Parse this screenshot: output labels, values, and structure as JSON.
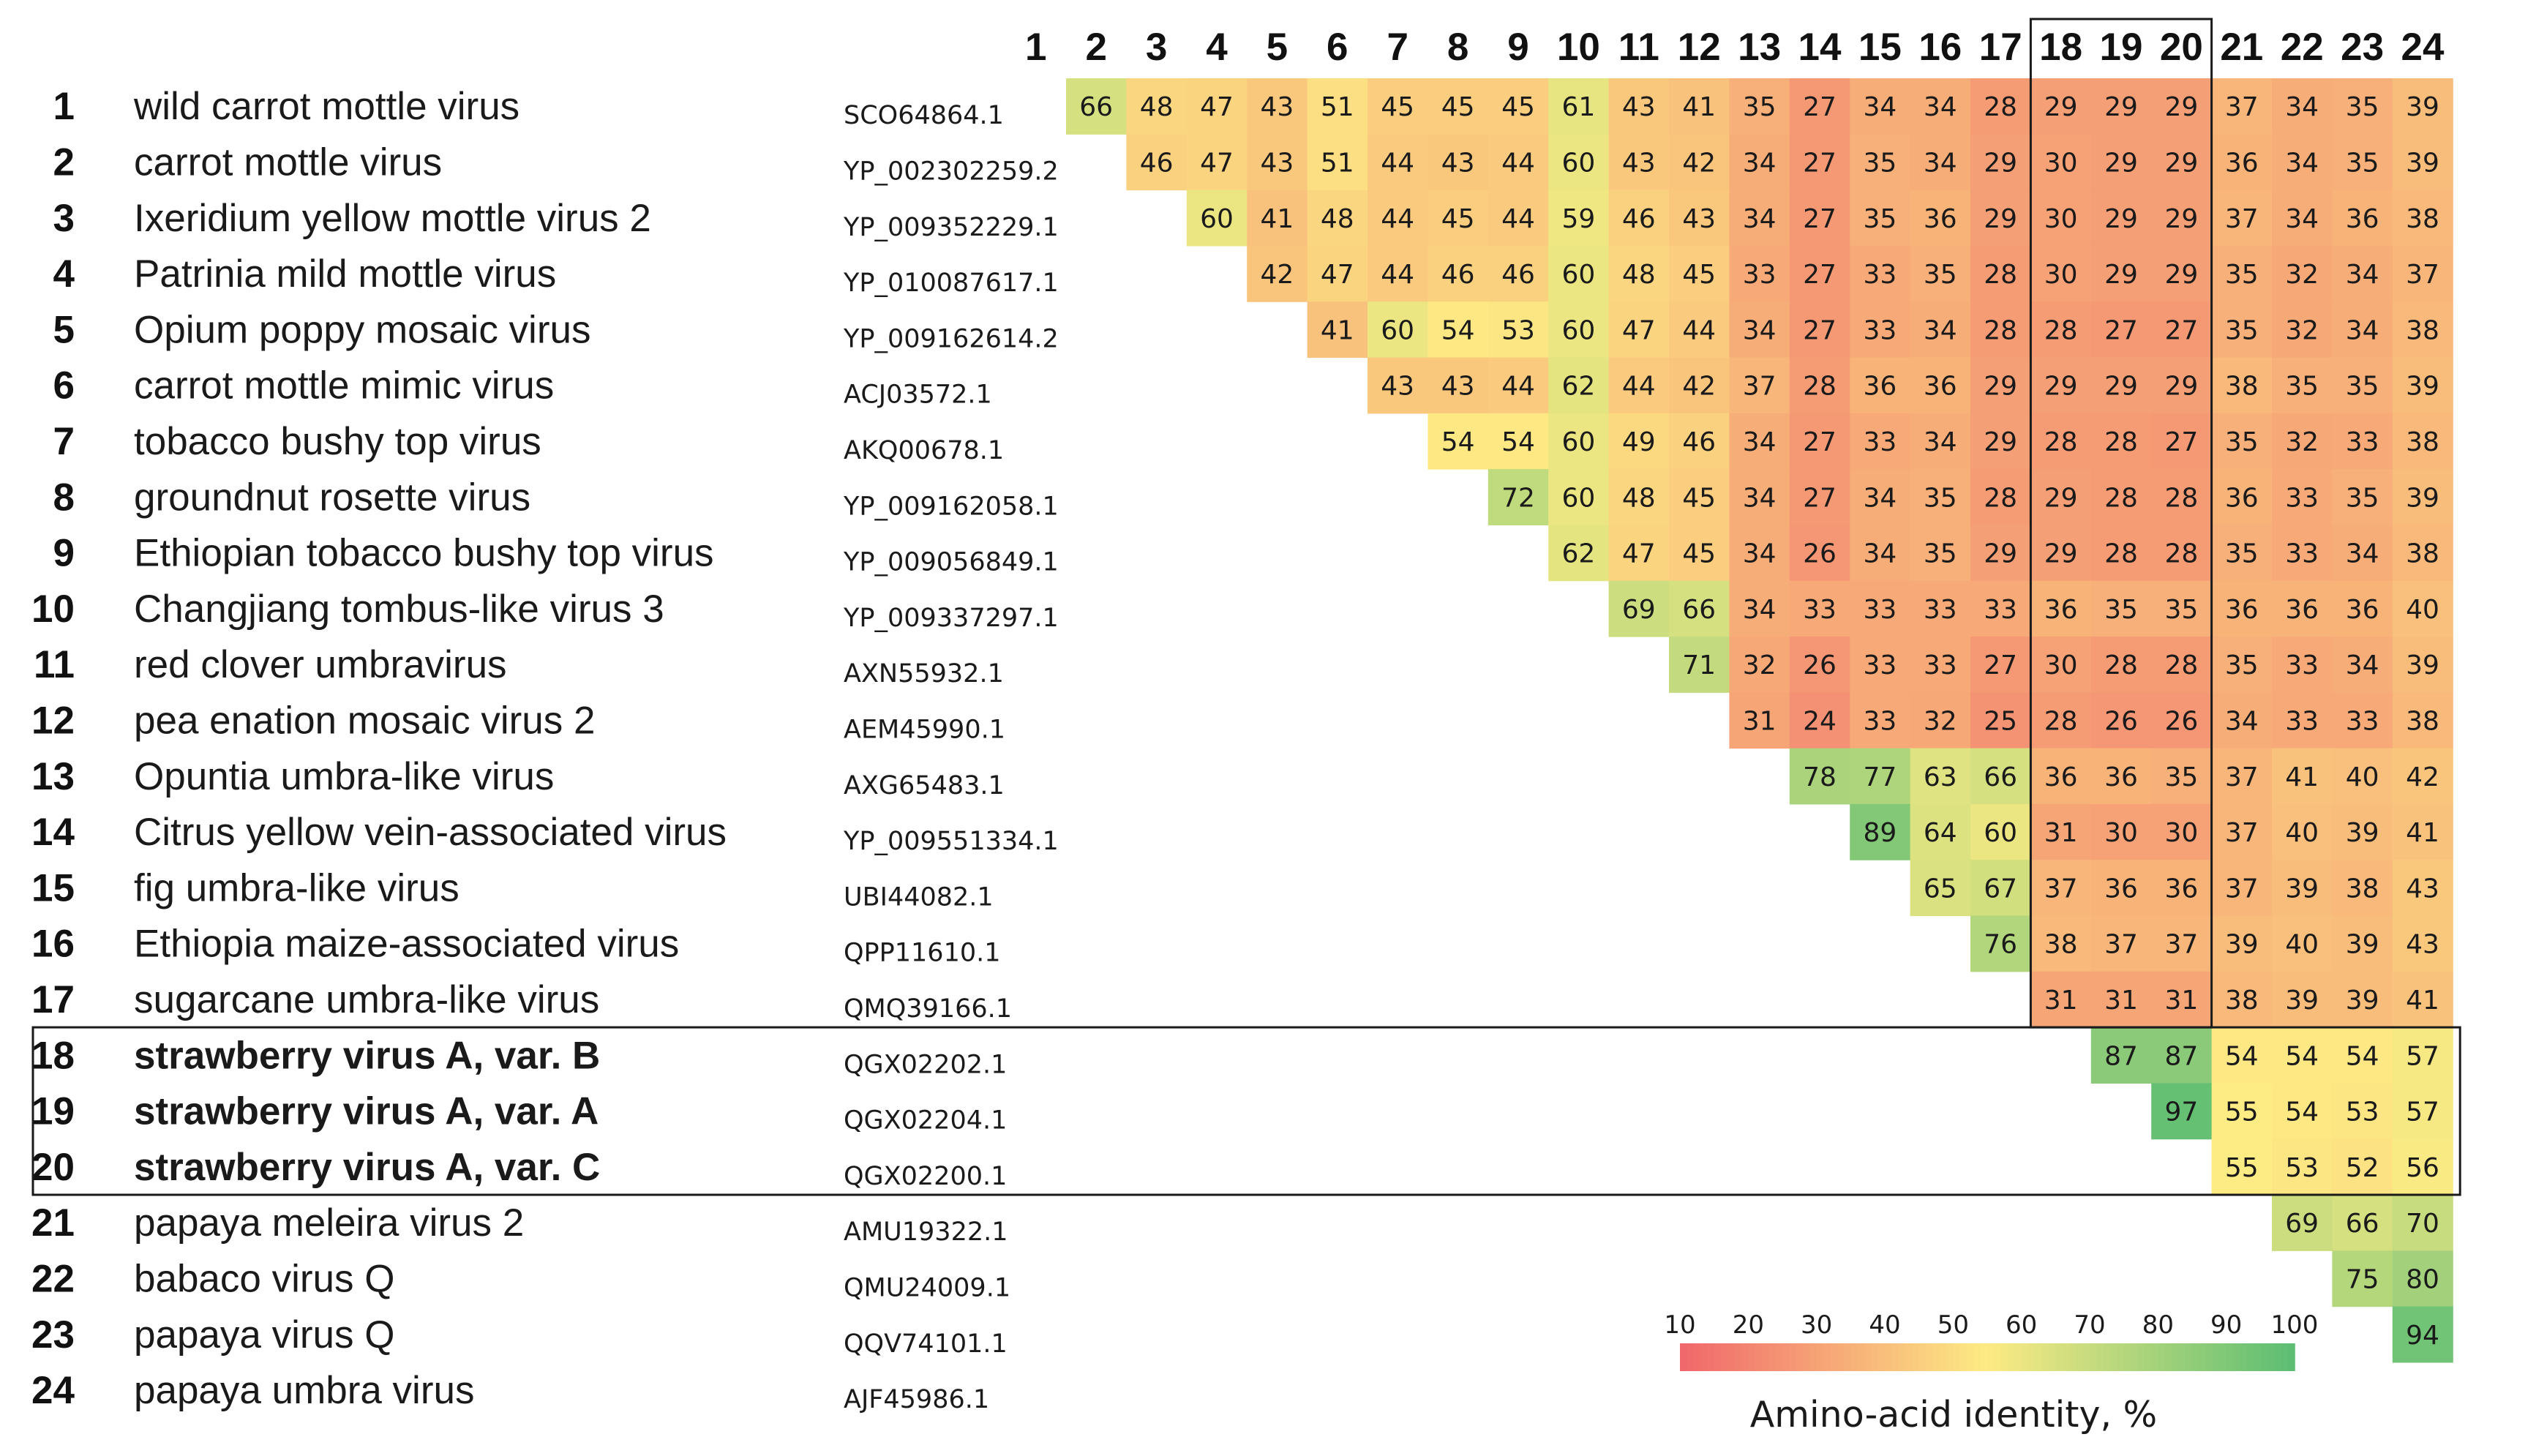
{
  "chart_data": {
    "type": "heatmap",
    "title": "",
    "n": 24,
    "column_labels": [
      "1",
      "2",
      "3",
      "4",
      "5",
      "6",
      "7",
      "8",
      "9",
      "10",
      "11",
      "12",
      "13",
      "14",
      "15",
      "16",
      "17",
      "18",
      "19",
      "20",
      "21",
      "22",
      "23",
      "24"
    ],
    "rows": [
      {
        "num": "1",
        "name": "wild carrot mottle virus",
        "accession": "SCO64864.1",
        "bold": false
      },
      {
        "num": "2",
        "name": "carrot mottle virus",
        "accession": "YP_002302259.2",
        "bold": false
      },
      {
        "num": "3",
        "name": "Ixeridium yellow mottle virus 2",
        "accession": "YP_009352229.1",
        "bold": false
      },
      {
        "num": "4",
        "name": "Patrinia mild mottle virus",
        "accession": "YP_010087617.1",
        "bold": false
      },
      {
        "num": "5",
        "name": "Opium poppy mosaic virus",
        "accession": "YP_009162614.2",
        "bold": false
      },
      {
        "num": "6",
        "name": "carrot mottle mimic virus",
        "accession": "ACJ03572.1",
        "bold": false
      },
      {
        "num": "7",
        "name": "tobacco bushy top virus",
        "accession": "AKQ00678.1",
        "bold": false
      },
      {
        "num": "8",
        "name": "groundnut rosette virus",
        "accession": "YP_009162058.1",
        "bold": false
      },
      {
        "num": "9",
        "name": "Ethiopian tobacco bushy top virus",
        "accession": "YP_009056849.1",
        "bold": false
      },
      {
        "num": "10",
        "name": "Changjiang tombus-like virus 3",
        "accession": "YP_009337297.1",
        "bold": false
      },
      {
        "num": "11",
        "name": "red clover umbravirus",
        "accession": "AXN55932.1",
        "bold": false
      },
      {
        "num": "12",
        "name": "pea enation mosaic virus 2",
        "accession": "AEM45990.1",
        "bold": false
      },
      {
        "num": "13",
        "name": "Opuntia umbra-like virus",
        "accession": "AXG65483.1",
        "bold": false
      },
      {
        "num": "14",
        "name": "Citrus yellow vein-associated virus",
        "accession": "YP_009551334.1",
        "bold": false
      },
      {
        "num": "15",
        "name": "fig umbra-like virus",
        "accession": "UBI44082.1",
        "bold": false
      },
      {
        "num": "16",
        "name": "Ethiopia maize-associated virus",
        "accession": "QPP11610.1",
        "bold": false
      },
      {
        "num": "17",
        "name": "sugarcane umbra-like virus",
        "accession": "QMQ39166.1",
        "bold": false
      },
      {
        "num": "18",
        "name": "strawberry virus A, var. B",
        "accession": "QGX02202.1",
        "bold": true
      },
      {
        "num": "19",
        "name": "strawberry virus A, var. A",
        "accession": "QGX02204.1",
        "bold": true
      },
      {
        "num": "20",
        "name": "strawberry virus A, var. C",
        "accession": "QGX02200.1",
        "bold": true
      },
      {
        "num": "21",
        "name": "papaya meleira virus 2",
        "accession": "AMU19322.1",
        "bold": false
      },
      {
        "num": "22",
        "name": "babaco virus Q",
        "accession": "QMU24009.1",
        "bold": false
      },
      {
        "num": "23",
        "name": "papaya virus Q",
        "accession": "QQV74101.1",
        "bold": false
      },
      {
        "num": "24",
        "name": "papaya umbra virus",
        "accession": "AJF45986.1",
        "bold": false
      }
    ],
    "values": [
      [
        66,
        48,
        47,
        43,
        51,
        45,
        45,
        45,
        61,
        43,
        41,
        35,
        27,
        34,
        34,
        28,
        29,
        29,
        29,
        37,
        34,
        35,
        39
      ],
      [
        46,
        47,
        43,
        51,
        44,
        43,
        44,
        60,
        43,
        42,
        34,
        27,
        35,
        34,
        29,
        30,
        29,
        29,
        36,
        34,
        35,
        39
      ],
      [
        60,
        41,
        48,
        44,
        45,
        44,
        59,
        46,
        43,
        34,
        27,
        35,
        36,
        29,
        30,
        29,
        29,
        37,
        34,
        36,
        38
      ],
      [
        42,
        47,
        44,
        46,
        46,
        60,
        48,
        45,
        33,
        27,
        33,
        35,
        28,
        30,
        29,
        29,
        35,
        32,
        34,
        37
      ],
      [
        41,
        60,
        54,
        53,
        60,
        47,
        44,
        34,
        27,
        33,
        34,
        28,
        28,
        27,
        27,
        35,
        32,
        34,
        38
      ],
      [
        43,
        43,
        44,
        62,
        44,
        42,
        37,
        28,
        36,
        36,
        29,
        29,
        29,
        29,
        38,
        35,
        35,
        39
      ],
      [
        54,
        54,
        60,
        49,
        46,
        34,
        27,
        33,
        34,
        29,
        28,
        28,
        27,
        35,
        32,
        33,
        38
      ],
      [
        72,
        60,
        48,
        45,
        34,
        27,
        34,
        35,
        28,
        29,
        28,
        28,
        36,
        33,
        35,
        39
      ],
      [
        62,
        47,
        45,
        34,
        26,
        34,
        35,
        29,
        29,
        28,
        28,
        35,
        33,
        34,
        38
      ],
      [
        69,
        66,
        34,
        33,
        33,
        33,
        33,
        36,
        35,
        35,
        36,
        36,
        36,
        40
      ],
      [
        71,
        32,
        26,
        33,
        33,
        27,
        30,
        28,
        28,
        35,
        33,
        34,
        39
      ],
      [
        31,
        24,
        33,
        32,
        25,
        28,
        26,
        26,
        34,
        33,
        33,
        38
      ],
      [
        78,
        77,
        63,
        66,
        36,
        36,
        35,
        37,
        41,
        40,
        42
      ],
      [
        89,
        64,
        60,
        31,
        30,
        30,
        37,
        40,
        39,
        41
      ],
      [
        65,
        67,
        37,
        36,
        36,
        37,
        39,
        38,
        43
      ],
      [
        76,
        38,
        37,
        37,
        39,
        40,
        39,
        43
      ],
      [
        31,
        31,
        31,
        38,
        39,
        39,
        41
      ],
      [
        87,
        87,
        54,
        54,
        54,
        57
      ],
      [
        97,
        55,
        54,
        53,
        57
      ],
      [
        55,
        53,
        52,
        56
      ],
      [
        69,
        66,
        70
      ],
      [
        75,
        80
      ],
      [
        94
      ],
      []
    ],
    "highlight_group": [
      "18",
      "19",
      "20"
    ],
    "legend": {
      "title": "Amino-acid identity, %",
      "ticks": [
        "10",
        "20",
        "30",
        "40",
        "50",
        "60",
        "70",
        "80",
        "90",
        "100"
      ],
      "range": [
        10,
        100
      ]
    },
    "colors": {
      "low": "#f0676b",
      "mid": "#fdeb84",
      "high": "#5bbd73"
    }
  }
}
